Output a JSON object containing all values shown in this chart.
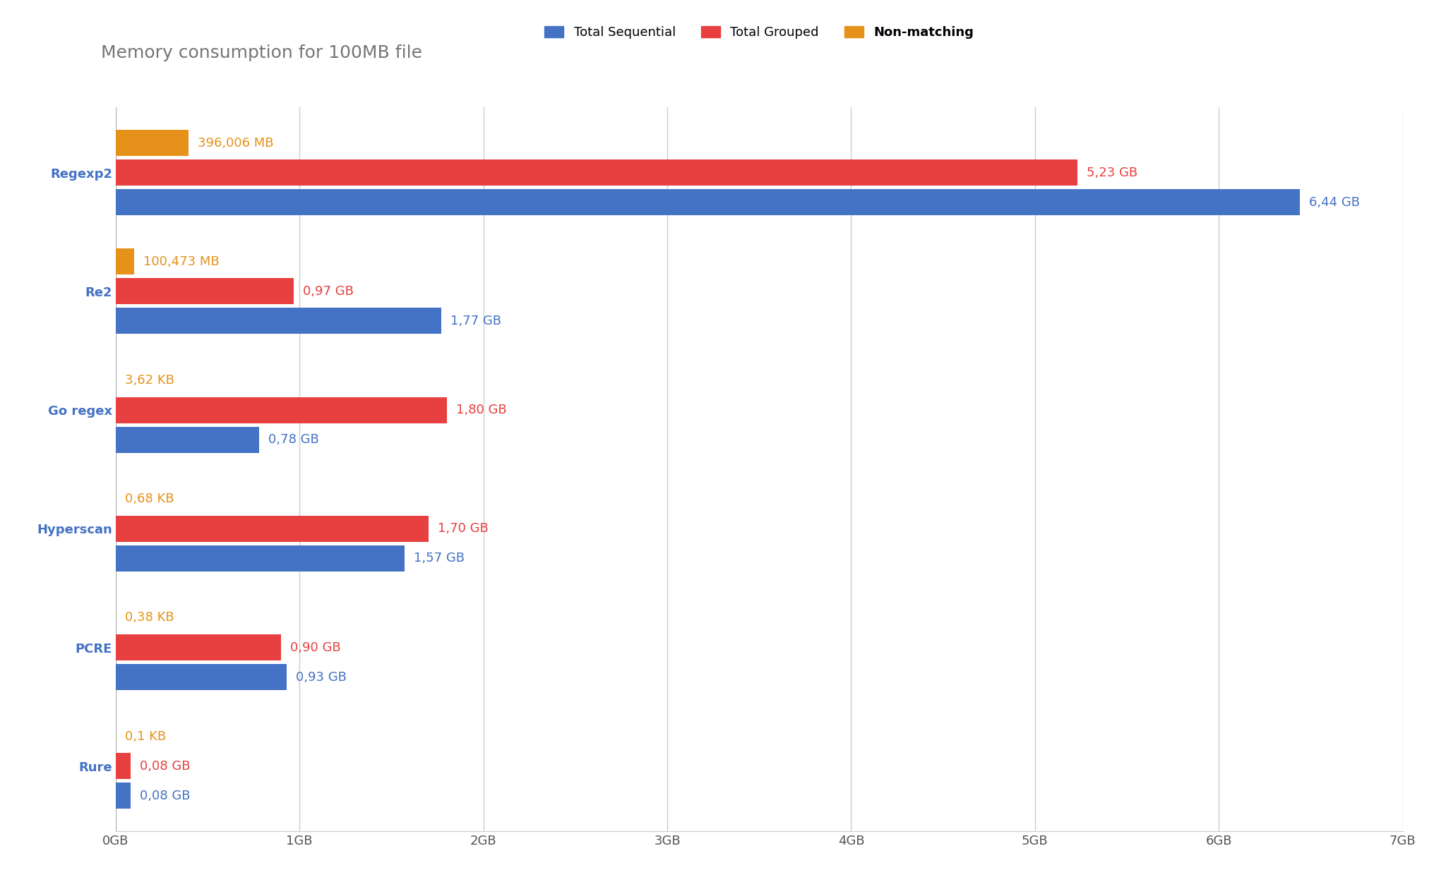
{
  "title": "Memory consumption for 100MB file",
  "categories": [
    "Regexp2",
    "Re2",
    "Go regex",
    "Hyperscan",
    "PCRE",
    "Rure"
  ],
  "series": {
    "Total Sequential": {
      "color": "#4472C4",
      "values": [
        6.44,
        1.77,
        0.78,
        1.57,
        0.93,
        0.08
      ],
      "labels": [
        "6,44 GB",
        "1,77 GB",
        "0,78 GB",
        "1,57 GB",
        "0,93 GB",
        "0,08 GB"
      ]
    },
    "Total Grouped": {
      "color": "#E84040",
      "values": [
        5.23,
        0.97,
        1.8,
        1.7,
        0.9,
        0.08
      ],
      "labels": [
        "5,23 GB",
        "0,97 GB",
        "1,80 GB",
        "1,70 GB",
        "0,90 GB",
        "0,08 GB"
      ]
    },
    "Non-matching": {
      "color": "#E6921A",
      "values": [
        0.396006,
        0.10047,
        3.62e-06,
        6.8e-07,
        3.8e-07,
        1e-07
      ],
      "labels": [
        "396,006 MB",
        "100,473 MB",
        "3,62 KB",
        "0,68 KB",
        "0,38 KB",
        "0,1 KB"
      ]
    }
  },
  "xlim": [
    0,
    7
  ],
  "xticks": [
    0,
    1,
    2,
    3,
    4,
    5,
    6,
    7
  ],
  "xtick_labels": [
    "0GB",
    "1GB",
    "2GB",
    "3GB",
    "4GB",
    "5GB",
    "6GB",
    "7GB"
  ],
  "background_color": "#FFFFFF",
  "grid_color": "#CCCCCC",
  "title_color": "#757575",
  "label_fontsize": 13,
  "title_fontsize": 18,
  "tick_fontsize": 13,
  "legend_fontsize": 13,
  "bar_height": 0.22,
  "bar_gap": 0.03,
  "yaxis_color": "#AAAAAA",
  "yticklabel_color": "#4472C4",
  "xticklabel_color": "#555555"
}
